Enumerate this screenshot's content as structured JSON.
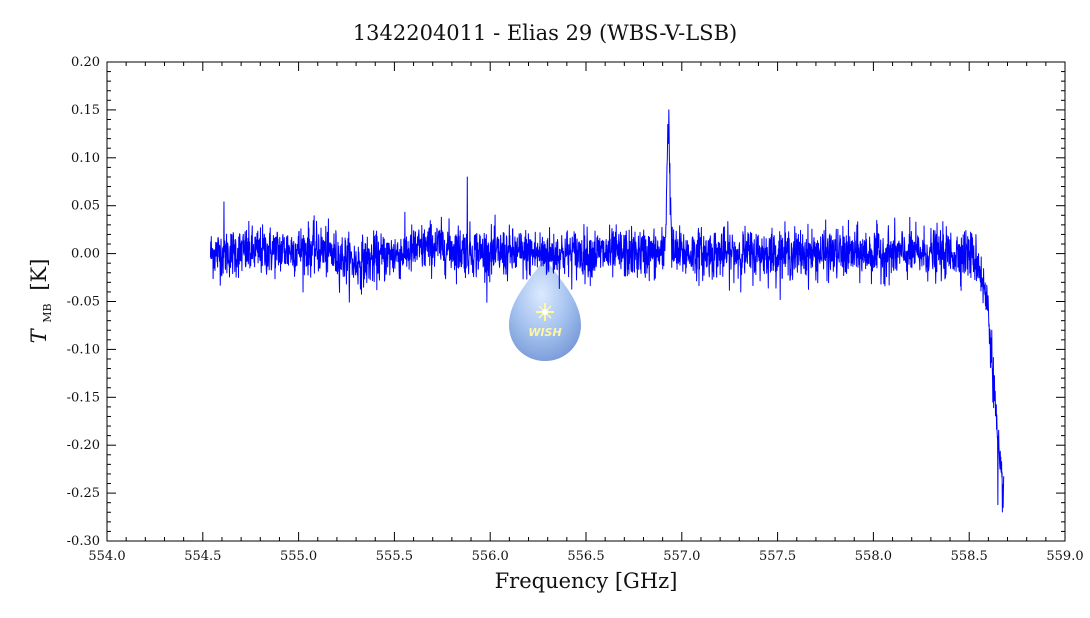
{
  "chart_data": {
    "type": "line",
    "title": "1342204011 - Elias 29 (WBS-V-LSB)",
    "xlabel": "Frequency [GHz]",
    "ylabel": {
      "symbol": "T",
      "subscript": "MB",
      "unit": "[K]"
    },
    "xlim": [
      554.0,
      559.0
    ],
    "ylim": [
      -0.3,
      0.2
    ],
    "x_ticks": [
      "554.0",
      "554.5",
      "555.0",
      "555.5",
      "556.0",
      "556.5",
      "557.0",
      "557.5",
      "558.0",
      "558.5",
      "559.0"
    ],
    "y_ticks": [
      "0.20",
      "0.15",
      "0.10",
      "0.05",
      "0.00",
      "-0.05",
      "-0.10",
      "-0.15",
      "-0.20",
      "-0.25",
      "-0.30"
    ],
    "grid": false,
    "series": [
      {
        "color": "#0000ff",
        "x_range": [
          554.54,
          558.68
        ],
        "noise_rms": 0.017,
        "baseline_points": [
          [
            554.54,
            0.0
          ],
          [
            555.1,
            0.005
          ],
          [
            555.3,
            -0.01
          ],
          [
            555.7,
            0.008
          ],
          [
            556.0,
            0.0
          ],
          [
            556.9,
            0.0
          ],
          [
            558.5,
            0.0
          ],
          [
            558.55,
            -0.01
          ],
          [
            558.6,
            -0.06
          ],
          [
            558.63,
            -0.14
          ],
          [
            558.66,
            -0.23
          ],
          [
            558.68,
            -0.245
          ]
        ],
        "peak": {
          "x": 556.93,
          "y": 0.135,
          "width": 0.008
        },
        "spikes": [
          [
            554.61,
            0.054
          ],
          [
            555.88,
            0.08
          ],
          [
            558.65,
            -0.262
          ]
        ]
      }
    ],
    "logo": {
      "text": "WISH"
    }
  }
}
